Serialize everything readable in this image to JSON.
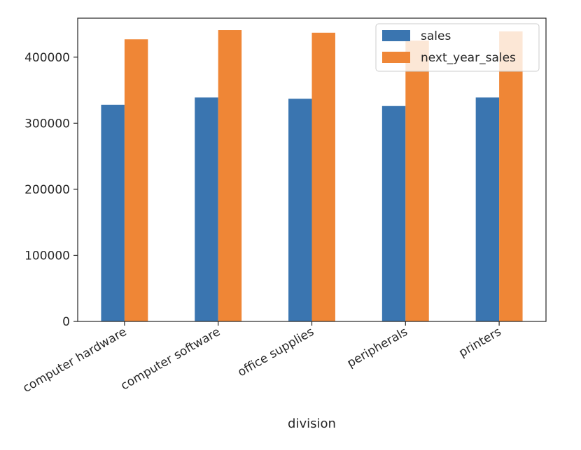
{
  "chart_data": {
    "type": "bar",
    "title": "",
    "xlabel": "division",
    "ylabel": "",
    "categories": [
      "computer hardware",
      "computer software",
      "office supplies",
      "peripherals",
      "printers"
    ],
    "series": [
      {
        "name": "sales",
        "color": "#3a75b0",
        "values": [
          328000,
          339000,
          337000,
          326000,
          339000
        ]
      },
      {
        "name": "next_year_sales",
        "color": "#ef8636",
        "values": [
          427000,
          441000,
          437000,
          425000,
          439000
        ]
      }
    ],
    "yticks": [
      0,
      100000,
      200000,
      300000,
      400000
    ],
    "ytick_labels": [
      "0",
      "100000",
      "200000",
      "300000",
      "400000"
    ],
    "ylim": [
      0,
      459000
    ],
    "grid": false,
    "legend_position": "top-right"
  }
}
